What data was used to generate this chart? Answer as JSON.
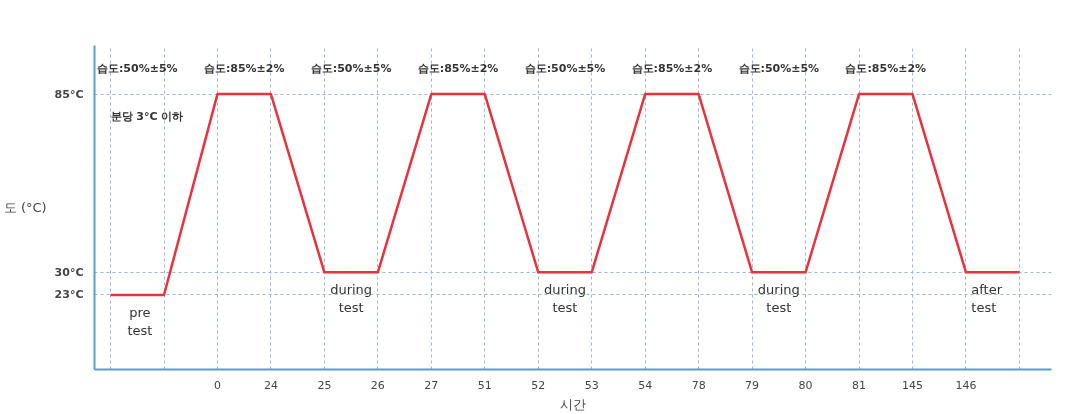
{
  "chart_data": {
    "type": "line",
    "ylabel": "도 (°C)",
    "xlabel": "시간",
    "categories": [
      null,
      null,
      "0",
      "24",
      "25",
      "26",
      "27",
      "51",
      "52",
      "53",
      "54",
      "78",
      "79",
      "80",
      "81",
      "145",
      "146",
      null
    ],
    "series": [
      {
        "color": "#e8323c",
        "values": [
          23,
          23,
          85,
          85,
          30,
          30,
          85,
          85,
          30,
          30,
          85,
          85,
          30,
          30,
          85,
          85,
          30,
          30
        ]
      }
    ],
    "ylim": [
      0,
      100
    ],
    "yticks": [
      {
        "value": 23,
        "label": "23°C"
      },
      {
        "value": 30,
        "label": "30°C"
      },
      {
        "value": 85,
        "label": "85°C"
      }
    ],
    "grid": true,
    "marker": "none",
    "line_style": "solid",
    "annotations": [
      "습도:50%±5%",
      "습도:85%±2%",
      "습도:50%±5%",
      "습도:85%±2%",
      "습도:50%±5%",
      "습도:85%±2%",
      "습도:50%±5%",
      "습도:85%±2%",
      "분당 3°C 이하",
      "pre\ntest",
      "during\ntest",
      "during\ntest",
      "during\ntest",
      "after\ntest"
    ]
  }
}
